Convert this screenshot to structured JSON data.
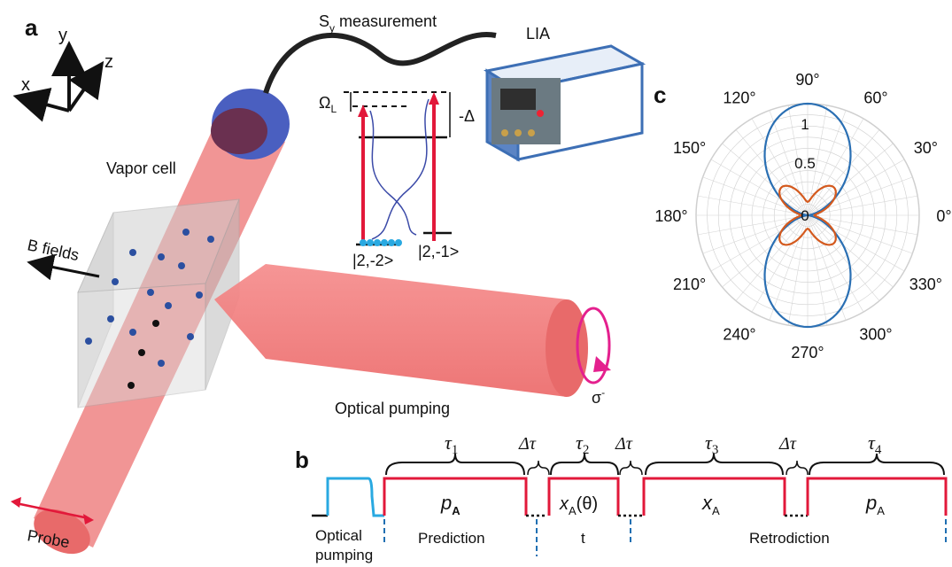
{
  "panels": {
    "a": "a",
    "b": "b",
    "c": "c"
  },
  "axes3d": {
    "x": "x",
    "y": "y",
    "z": "z"
  },
  "setup": {
    "measurement_prefix": "S",
    "measurement_sub": "y",
    "measurement_suffix": " measurement",
    "lia": "LIA",
    "vapor_cell": "Vapor cell",
    "b_fields": "B fields",
    "probe": "Probe",
    "optical_pumping": "Optical pumping",
    "sigma": "σ",
    "sigma_sup": "-"
  },
  "levels": {
    "omega": "Ω",
    "omega_sub": "L",
    "delta": "-Δ",
    "state_left": "|2,-2>",
    "state_right": "|2,-1>"
  },
  "sequence": {
    "pump_label_1": "Optical",
    "pump_label_2": "pumping",
    "tau1": "τ",
    "tau1_sub": "1",
    "tau2": "τ",
    "tau2_sub": "2",
    "tau3": "τ",
    "tau3_sub": "3",
    "tau4": "τ",
    "tau4_sub": "4",
    "dtau": "Δτ",
    "seg1_main": "p",
    "seg1_sub": "A",
    "seg2_main": "x",
    "seg2_sub": "A",
    "seg2_arg": "(θ)",
    "seg3_main": "x",
    "seg3_sub": "A",
    "seg4_main": "p",
    "seg4_sub": "A",
    "prediction": "Prediction",
    "t": "t",
    "retrodiction": "Retrodiction"
  },
  "polar": {
    "angle_labels": [
      "0°",
      "30°",
      "60°",
      "90°",
      "120°",
      "150°",
      "180°",
      "210°",
      "240°",
      "270°",
      "300°",
      "330°"
    ],
    "radial_labels": [
      "0",
      "0.5",
      "1"
    ],
    "series_colors": {
      "blue": "#2a6fb3",
      "orange": "#d45a1e"
    }
  }
}
